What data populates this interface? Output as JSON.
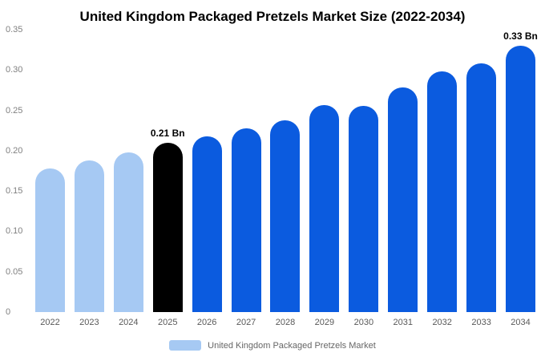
{
  "title": "United Kingdom Packaged Pretzels Market Size (2022-2034)",
  "colors": {
    "past": "#a6c9f3",
    "highlight": "#000000",
    "forecast": "#0b5bdf",
    "background": "#ffffff",
    "ytick_text": "#808080",
    "xtick_text": "#595959"
  },
  "legend": {
    "label": "United Kingdom Packaged Pretzels Market",
    "swatch_color": "#a6c9f3"
  },
  "chart_data": {
    "type": "bar",
    "title": "United Kingdom Packaged Pretzels Market Size (2022-2034)",
    "xlabel": "",
    "ylabel": "",
    "ylim": [
      0,
      0.35
    ],
    "yticks": [
      0,
      0.05,
      0.1,
      0.15,
      0.2,
      0.25,
      0.3,
      0.35
    ],
    "ytick_labels": [
      "0",
      "0.05",
      "0.10",
      "0.15",
      "0.20",
      "0.25",
      "0.30",
      "0.35"
    ],
    "grid": false,
    "legend_position": "bottom",
    "categories": [
      "2022",
      "2023",
      "2024",
      "2025",
      "2026",
      "2027",
      "2028",
      "2029",
      "2030",
      "2031",
      "2032",
      "2033",
      "2034"
    ],
    "values": [
      0.178,
      0.188,
      0.198,
      0.21,
      0.218,
      0.228,
      0.238,
      0.257,
      0.256,
      0.278,
      0.298,
      0.308,
      0.33
    ],
    "bar_roles": [
      "past",
      "past",
      "past",
      "highlight",
      "forecast",
      "forecast",
      "forecast",
      "forecast",
      "forecast",
      "forecast",
      "forecast",
      "forecast",
      "forecast"
    ],
    "annotations": [
      {
        "index": 3,
        "text": "0.21 Bn"
      },
      {
        "index": 12,
        "text": "0.33 Bn"
      }
    ]
  }
}
